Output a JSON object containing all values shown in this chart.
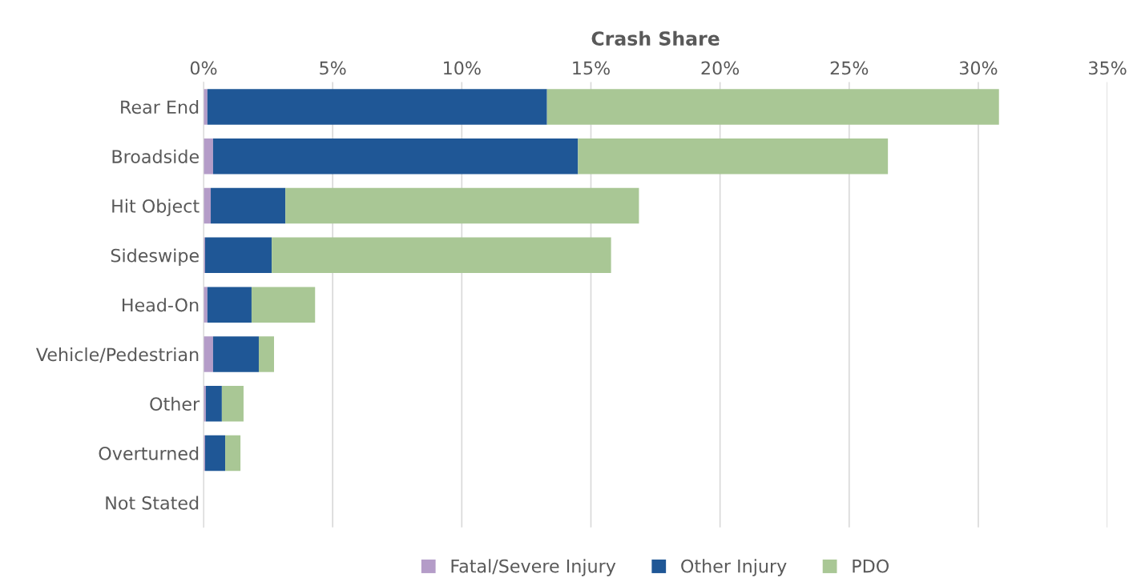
{
  "chart_data": {
    "type": "bar",
    "orientation": "horizontal",
    "stacked": true,
    "xlabel": "Crash Share",
    "categories": [
      "Rear End",
      "Broadside",
      "Hit Object",
      "Sideswipe",
      "Head-On",
      "Vehicle/Pedestrian",
      "Other",
      "Overturned",
      "Not Stated"
    ],
    "series": [
      {
        "name": "Fatal/Severe Injury",
        "color": "#b49cc8",
        "values": [
          0.15,
          0.37,
          0.28,
          0.06,
          0.15,
          0.37,
          0.09,
          0.06,
          0
        ]
      },
      {
        "name": "Other Injury",
        "color": "#1f5796",
        "values": [
          13.15,
          14.13,
          2.89,
          2.58,
          1.71,
          1.77,
          0.62,
          0.78,
          0
        ]
      },
      {
        "name": "PDO",
        "color": "#a9c795",
        "values": [
          17.5,
          12.0,
          13.69,
          13.14,
          2.46,
          0.59,
          0.84,
          0.59,
          0
        ]
      }
    ],
    "xlim": [
      0,
      35
    ],
    "xticks": [
      {
        "value": 0,
        "label": "0%"
      },
      {
        "value": 5,
        "label": "5%"
      },
      {
        "value": 10,
        "label": "10%"
      },
      {
        "value": 15,
        "label": "15%"
      },
      {
        "value": 20,
        "label": "20%"
      },
      {
        "value": 25,
        "label": "25%"
      },
      {
        "value": 30,
        "label": "30%"
      },
      {
        "value": 35,
        "label": "35%"
      }
    ],
    "grid": "x",
    "legend": "bottom"
  }
}
